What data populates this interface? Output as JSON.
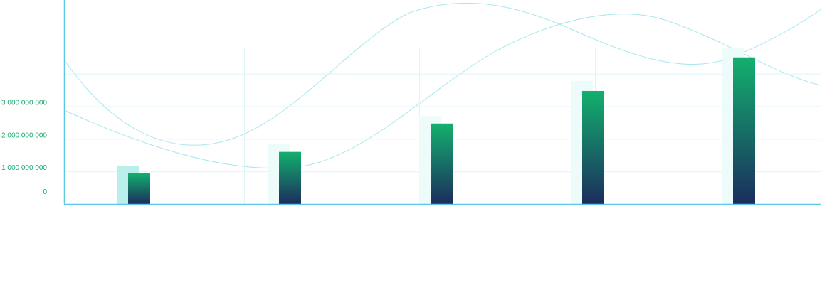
{
  "chart_data": {
    "type": "bar",
    "title": "",
    "xlabel": "",
    "ylabel": "",
    "categories": [
      "",
      "",
      "",
      "",
      ""
    ],
    "ylim": [
      0,
      4800000000
    ],
    "yticks": [
      {
        "value": 0,
        "label": "0"
      },
      {
        "value": 1000000000,
        "label": "1 000 000 000"
      },
      {
        "value": 2000000000,
        "label": "2 000 000 000"
      },
      {
        "value": 3000000000,
        "label": "3 000 000 000"
      }
    ],
    "series": [
      {
        "values": [
          950000000,
          1600000000,
          2470000000,
          3470000000,
          4500000000
        ]
      }
    ],
    "ghost_bars": [
      1170000000,
      1830000000,
      2700000000,
      3780000000,
      4780000000
    ],
    "grid": true,
    "colors": {
      "axis": "#5bc8e6",
      "grid": "#dff4f8",
      "tick_label": "#18a96c",
      "bar_top": "#13b06e",
      "bar_bottom": "#1b2d5d",
      "ghost_first": "#b9eeea",
      "ghost": "#edfcfb",
      "wave": "#a6e7ee"
    }
  }
}
